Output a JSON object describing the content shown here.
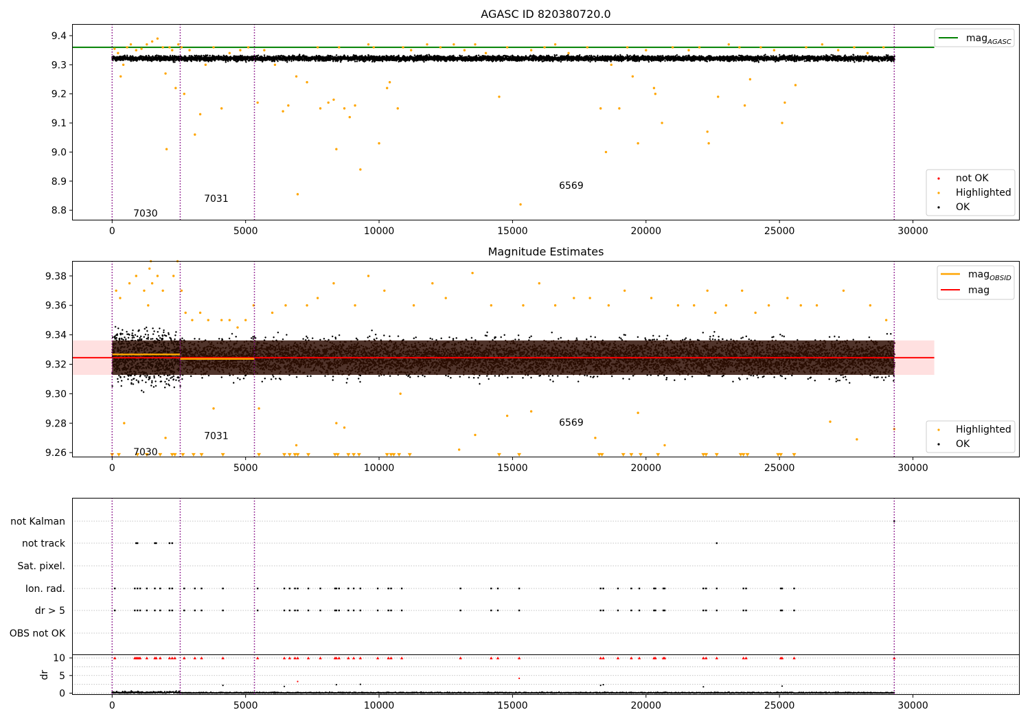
{
  "chart_data": [
    {
      "type": "scatter",
      "title": "AGASC ID 820380720.0",
      "xlim": [
        -1500,
        34000
      ],
      "ylim": [
        8.765,
        9.44
      ],
      "x_ticks": [
        0,
        5000,
        10000,
        15000,
        20000,
        25000,
        30000
      ],
      "y_ticks": [
        8.8,
        8.9,
        9.0,
        9.1,
        9.2,
        9.3,
        9.4
      ],
      "y_tick_labels": [
        "8.8",
        "8.9",
        "9.0",
        "9.1",
        "9.2",
        "9.3",
        "9.4"
      ],
      "obsid_boundaries": [
        0,
        2550,
        5330,
        29300
      ],
      "obsid_labels": [
        {
          "text": "7030",
          "x": 1250,
          "y": 8.79
        },
        {
          "text": "7031",
          "x": 3900,
          "y": 8.84
        },
        {
          "text": "6569",
          "x": 17200,
          "y": 8.885
        }
      ],
      "reference_line": {
        "name": "mag",
        "sub": "AGASC",
        "value": 9.36,
        "x_range": [
          -1500,
          30800
        ],
        "color": "#008000"
      },
      "ok_band": {
        "x_range": [
          0,
          29300
        ],
        "center": 9.322,
        "half_width": 0.014
      },
      "legend_lines": [
        {
          "label": "mag",
          "sub": "AGASC",
          "color": "#008000"
        }
      ],
      "legend_markers": [
        {
          "label": "not OK",
          "color": "#ff0000"
        },
        {
          "label": "Highlighted",
          "color": "#ffa500"
        },
        {
          "label": "OK",
          "color": "#000000"
        }
      ],
      "highlighted_points": [
        [
          90,
          9.355
        ],
        [
          220,
          9.34
        ],
        [
          320,
          9.26
        ],
        [
          420,
          9.3
        ],
        [
          560,
          9.36
        ],
        [
          700,
          9.37
        ],
        [
          900,
          9.35
        ],
        [
          1100,
          9.355
        ],
        [
          1300,
          9.37
        ],
        [
          1500,
          9.38
        ],
        [
          1700,
          9.39
        ],
        [
          1900,
          9.36
        ],
        [
          2000,
          9.27
        ],
        [
          2040,
          9.01
        ],
        [
          2150,
          9.36
        ],
        [
          2250,
          9.35
        ],
        [
          2380,
          9.22
        ],
        [
          2480,
          9.37
        ],
        [
          2600,
          9.36
        ],
        [
          2700,
          9.2
        ],
        [
          2900,
          9.35
        ],
        [
          3100,
          9.06
        ],
        [
          3300,
          9.13
        ],
        [
          3500,
          9.3
        ],
        [
          3800,
          9.36
        ],
        [
          4100,
          9.15
        ],
        [
          4400,
          9.34
        ],
        [
          4800,
          9.35
        ],
        [
          5100,
          9.36
        ],
        [
          5450,
          9.17
        ],
        [
          5700,
          9.35
        ],
        [
          6100,
          9.3
        ],
        [
          6400,
          9.14
        ],
        [
          6600,
          9.16
        ],
        [
          6900,
          9.26
        ],
        [
          6950,
          8.855
        ],
        [
          7300,
          9.24
        ],
        [
          7700,
          9.36
        ],
        [
          7800,
          9.15
        ],
        [
          8100,
          9.17
        ],
        [
          8300,
          9.18
        ],
        [
          8400,
          9.01
        ],
        [
          8500,
          9.36
        ],
        [
          8700,
          9.15
        ],
        [
          8900,
          9.12
        ],
        [
          9100,
          9.16
        ],
        [
          9300,
          8.94
        ],
        [
          9600,
          9.37
        ],
        [
          9800,
          9.36
        ],
        [
          10000,
          9.03
        ],
        [
          10300,
          9.22
        ],
        [
          10400,
          9.24
        ],
        [
          10700,
          9.15
        ],
        [
          10900,
          9.36
        ],
        [
          11200,
          9.35
        ],
        [
          11800,
          9.37
        ],
        [
          12300,
          9.36
        ],
        [
          12800,
          9.37
        ],
        [
          13200,
          9.35
        ],
        [
          13600,
          9.37
        ],
        [
          14000,
          9.34
        ],
        [
          14500,
          9.19
        ],
        [
          14800,
          9.36
        ],
        [
          15300,
          8.82
        ],
        [
          15700,
          9.35
        ],
        [
          16200,
          9.36
        ],
        [
          16600,
          9.37
        ],
        [
          17100,
          9.34
        ],
        [
          17800,
          9.36
        ],
        [
          18300,
          9.15
        ],
        [
          18500,
          9.0
        ],
        [
          18700,
          9.3
        ],
        [
          19000,
          9.15
        ],
        [
          19300,
          9.36
        ],
        [
          19500,
          9.26
        ],
        [
          19700,
          9.03
        ],
        [
          20000,
          9.35
        ],
        [
          20300,
          9.22
        ],
        [
          20350,
          9.2
        ],
        [
          20600,
          9.1
        ],
        [
          21000,
          9.36
        ],
        [
          21600,
          9.35
        ],
        [
          22000,
          9.36
        ],
        [
          22300,
          9.07
        ],
        [
          22350,
          9.03
        ],
        [
          22700,
          9.19
        ],
        [
          23100,
          9.37
        ],
        [
          23500,
          9.36
        ],
        [
          23700,
          9.16
        ],
        [
          23900,
          9.25
        ],
        [
          24300,
          9.36
        ],
        [
          24800,
          9.35
        ],
        [
          25100,
          9.1
        ],
        [
          25200,
          9.17
        ],
        [
          25600,
          9.23
        ],
        [
          26000,
          9.36
        ],
        [
          26600,
          9.37
        ],
        [
          27200,
          9.35
        ],
        [
          27800,
          9.36
        ],
        [
          28300,
          9.34
        ],
        [
          28900,
          9.36
        ]
      ]
    },
    {
      "type": "scatter",
      "title": "Magnitude Estimates",
      "xlim": [
        -1500,
        34000
      ],
      "ylim": [
        9.2568,
        9.3902
      ],
      "x_ticks": [
        0,
        5000,
        10000,
        15000,
        20000,
        25000,
        30000
      ],
      "y_ticks": [
        9.26,
        9.28,
        9.3,
        9.32,
        9.34,
        9.36,
        9.38
      ],
      "y_tick_labels": [
        "9.26",
        "9.28",
        "9.30",
        "9.32",
        "9.34",
        "9.36",
        "9.38"
      ],
      "obsid_boundaries": [
        0,
        2550,
        5330,
        29300
      ],
      "obsid_labels": [
        {
          "text": "7030",
          "x": 1250,
          "y": 9.2605
        },
        {
          "text": "7031",
          "x": 3900,
          "y": 9.2715
        },
        {
          "text": "6569",
          "x": 17200,
          "y": 9.2805
        }
      ],
      "mag_line": {
        "name": "mag",
        "value": 9.3245,
        "x_range": [
          -1500,
          30800
        ],
        "color": "#ff0000"
      },
      "mag_band": {
        "x_range": [
          -1500,
          30800
        ],
        "low": 9.3128,
        "high": 9.3362
      },
      "mag_obsid_segments": [
        {
          "x_range": [
            0,
            2550
          ],
          "value": 9.3267
        },
        {
          "x_range": [
            2550,
            5330
          ],
          "value": 9.3237
        }
      ],
      "ok_band": {
        "x_range": [
          0,
          29300
        ],
        "low": 9.3128,
        "high": 9.3362
      },
      "legend_lines": [
        {
          "label": "mag",
          "sub": "OBSID",
          "color": "#ffa500"
        },
        {
          "label": "mag",
          "sub": "",
          "color": "#ff0000"
        }
      ],
      "legend_markers": [
        {
          "label": "Highlighted",
          "color": "#ffa500"
        },
        {
          "label": "OK",
          "color": "#000000"
        }
      ],
      "highlighted_points": [
        [
          150,
          9.37
        ],
        [
          300,
          9.365
        ],
        [
          450,
          9.28
        ],
        [
          650,
          9.375
        ],
        [
          900,
          9.38
        ],
        [
          1200,
          9.37
        ],
        [
          1350,
          9.36
        ],
        [
          1400,
          9.385
        ],
        [
          1450,
          9.39
        ],
        [
          1500,
          9.375
        ],
        [
          1700,
          9.38
        ],
        [
          1900,
          9.37
        ],
        [
          2000,
          9.27
        ],
        [
          2300,
          9.38
        ],
        [
          2450,
          9.39
        ],
        [
          2600,
          9.37
        ],
        [
          2750,
          9.355
        ],
        [
          3000,
          9.35
        ],
        [
          3300,
          9.355
        ],
        [
          3600,
          9.35
        ],
        [
          3800,
          9.29
        ],
        [
          4100,
          9.35
        ],
        [
          4400,
          9.35
        ],
        [
          4700,
          9.345
        ],
        [
          5000,
          9.35
        ],
        [
          5300,
          9.36
        ],
        [
          5500,
          9.29
        ],
        [
          6000,
          9.355
        ],
        [
          6500,
          9.36
        ],
        [
          6900,
          9.265
        ],
        [
          7300,
          9.36
        ],
        [
          7700,
          9.365
        ],
        [
          8300,
          9.375
        ],
        [
          8400,
          9.28
        ],
        [
          8700,
          9.277
        ],
        [
          9100,
          9.36
        ],
        [
          9600,
          9.38
        ],
        [
          10200,
          9.37
        ],
        [
          10800,
          9.3
        ],
        [
          11300,
          9.36
        ],
        [
          12000,
          9.375
        ],
        [
          12500,
          9.365
        ],
        [
          13000,
          9.262
        ],
        [
          13500,
          9.382
        ],
        [
          13600,
          9.272
        ],
        [
          14200,
          9.36
        ],
        [
          14800,
          9.285
        ],
        [
          15400,
          9.36
        ],
        [
          15700,
          9.288
        ],
        [
          16000,
          9.375
        ],
        [
          16600,
          9.36
        ],
        [
          17300,
          9.365
        ],
        [
          17900,
          9.365
        ],
        [
          18100,
          9.27
        ],
        [
          18600,
          9.36
        ],
        [
          19200,
          9.37
        ],
        [
          19700,
          9.287
        ],
        [
          20200,
          9.365
        ],
        [
          20700,
          9.265
        ],
        [
          21200,
          9.36
        ],
        [
          21800,
          9.36
        ],
        [
          22300,
          9.37
        ],
        [
          22600,
          9.355
        ],
        [
          23000,
          9.36
        ],
        [
          23600,
          9.37
        ],
        [
          24100,
          9.355
        ],
        [
          24600,
          9.36
        ],
        [
          25300,
          9.365
        ],
        [
          25800,
          9.36
        ],
        [
          26400,
          9.36
        ],
        [
          26900,
          9.281
        ],
        [
          27400,
          9.37
        ],
        [
          27900,
          9.269
        ],
        [
          28400,
          9.36
        ],
        [
          29000,
          9.35
        ],
        [
          29300,
          9.276
        ]
      ],
      "low_markers_x": [
        0,
        250,
        950,
        1300,
        1800,
        2250,
        2350,
        2650,
        3050,
        3350,
        4150,
        5500,
        6450,
        6650,
        6850,
        6950,
        7350,
        8350,
        8450,
        8850,
        9050,
        9250,
        10300,
        10450,
        10550,
        10750,
        11150,
        14500,
        15250,
        18250,
        18350,
        19150,
        19450,
        19800,
        20450,
        22150,
        22250,
        22650,
        23550,
        23650,
        23800,
        24950,
        25050,
        25550
      ],
      "low_marker_y": 9.2585
    },
    {
      "type": "scatter",
      "xlim": [
        -1500,
        34000
      ],
      "x_ticks": [
        0,
        5000,
        10000,
        15000,
        20000,
        25000,
        30000
      ],
      "obsid_boundaries": [
        0,
        2550,
        5330,
        29300
      ],
      "categories": [
        "not Kalman",
        "not track",
        "Sat. pixel.",
        "Ion. rad.",
        "dr > 5",
        "OBS not OK"
      ],
      "flag_points": {
        "not Kalman": [
          29300
        ],
        "not track": [
          900,
          950,
          1600,
          1650,
          2150,
          2250,
          22650
        ],
        "Sat. pixel.": [],
        "Ion. rad.": [
          100,
          850,
          950,
          1050,
          1300,
          1600,
          1800,
          2150,
          2250,
          2700,
          3100,
          3350,
          4150,
          5450,
          6450,
          6650,
          6850,
          6950,
          7350,
          7800,
          8350,
          8400,
          8500,
          8850,
          9050,
          9300,
          9950,
          10350,
          10450,
          10850,
          13050,
          14200,
          14450,
          15250,
          18300,
          18400,
          18950,
          19450,
          19750,
          20300,
          20350,
          20650,
          20700,
          22150,
          22250,
          22650,
          23650,
          23750,
          25050,
          25100,
          25550
        ],
        "dr > 5": [
          100,
          850,
          950,
          1050,
          1300,
          1600,
          1800,
          2150,
          2250,
          2700,
          3100,
          3350,
          4150,
          5450,
          6450,
          6650,
          6850,
          6950,
          7350,
          7800,
          8350,
          8400,
          8500,
          8850,
          9050,
          9300,
          9950,
          10350,
          10450,
          10850,
          13050,
          14200,
          14450,
          15250,
          18300,
          18400,
          18950,
          19450,
          19750,
          20300,
          20350,
          20650,
          20700,
          22150,
          22250,
          22650,
          23650,
          23750,
          25050,
          25100,
          25550
        ],
        "OBS not OK": []
      },
      "dr_axis": {
        "label": "dr",
        "ylim": [
          -0.5,
          10.8
        ],
        "y_ticks": [
          0,
          5,
          10
        ],
        "y_tick_labels": [
          "0",
          "5",
          "10"
        ],
        "gridlines": [
          0,
          2.5,
          5,
          7.5,
          10
        ],
        "clip_value": 10
      },
      "dr_clipped_x": [
        100,
        850,
        900,
        950,
        1000,
        1050,
        1300,
        1600,
        1650,
        1800,
        2150,
        2250,
        2350,
        2700,
        3100,
        3350,
        4150,
        5450,
        6450,
        6650,
        6850,
        6950,
        7350,
        7800,
        8350,
        8400,
        8500,
        8850,
        9050,
        9300,
        9950,
        10350,
        10450,
        10850,
        13050,
        14200,
        14450,
        15250,
        18300,
        18400,
        18950,
        19450,
        19750,
        20300,
        20350,
        20650,
        20700,
        22150,
        22250,
        22650,
        23650,
        23750,
        25050,
        25100,
        25550,
        29300
      ],
      "dr_outliers": [
        [
          6950,
          3.3
        ],
        [
          15250,
          4.2
        ],
        [
          4150,
          2.2
        ],
        [
          8400,
          2.4
        ],
        [
          9300,
          2.5
        ],
        [
          18300,
          2.2
        ],
        [
          18400,
          2.4
        ],
        [
          22150,
          1.8
        ],
        [
          25100,
          2.0
        ],
        [
          6450,
          1.9
        ]
      ]
    }
  ]
}
